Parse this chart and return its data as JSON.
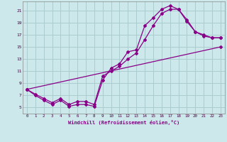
{
  "bg_color": "#cde8ea",
  "grid_color": "#aacdd0",
  "line_color": "#880088",
  "xlim": [
    -0.5,
    23.5
  ],
  "ylim": [
    4.0,
    22.5
  ],
  "xticks": [
    0,
    1,
    2,
    3,
    4,
    5,
    6,
    7,
    8,
    9,
    10,
    11,
    12,
    13,
    14,
    15,
    16,
    17,
    18,
    19,
    20,
    21,
    22,
    23
  ],
  "yticks": [
    5,
    7,
    9,
    11,
    13,
    15,
    17,
    19,
    21
  ],
  "xlabel": "Windchill (Refroidissement éolien,°C)",
  "line1_x": [
    0,
    1,
    2,
    3,
    4,
    5,
    6,
    7,
    8,
    9,
    10,
    11,
    12,
    13,
    14,
    15,
    16,
    17,
    18,
    19,
    20,
    21,
    22,
    23
  ],
  "line1_y": [
    8,
    7,
    6.2,
    5.5,
    6.2,
    5.2,
    5.5,
    5.5,
    5.2,
    9.5,
    11.5,
    12.2,
    14.2,
    14.5,
    18.5,
    19.8,
    21.2,
    21.8,
    21.2,
    19.2,
    17.5,
    16.8,
    16.5,
    16.5
  ],
  "line2_x": [
    0,
    1,
    2,
    3,
    4,
    5,
    6,
    7,
    8,
    9,
    10,
    11,
    12,
    13,
    14,
    15,
    16,
    17,
    18,
    19,
    20,
    21,
    22,
    23
  ],
  "line2_y": [
    8,
    7.2,
    6.5,
    5.8,
    6.5,
    5.5,
    6.0,
    6.0,
    5.5,
    10.2,
    11.0,
    11.8,
    13.0,
    14.0,
    16.2,
    18.5,
    20.5,
    21.2,
    21.2,
    19.5,
    17.5,
    17.0,
    16.5,
    16.5
  ],
  "line3_x": [
    0,
    23
  ],
  "line3_y": [
    8,
    15
  ]
}
